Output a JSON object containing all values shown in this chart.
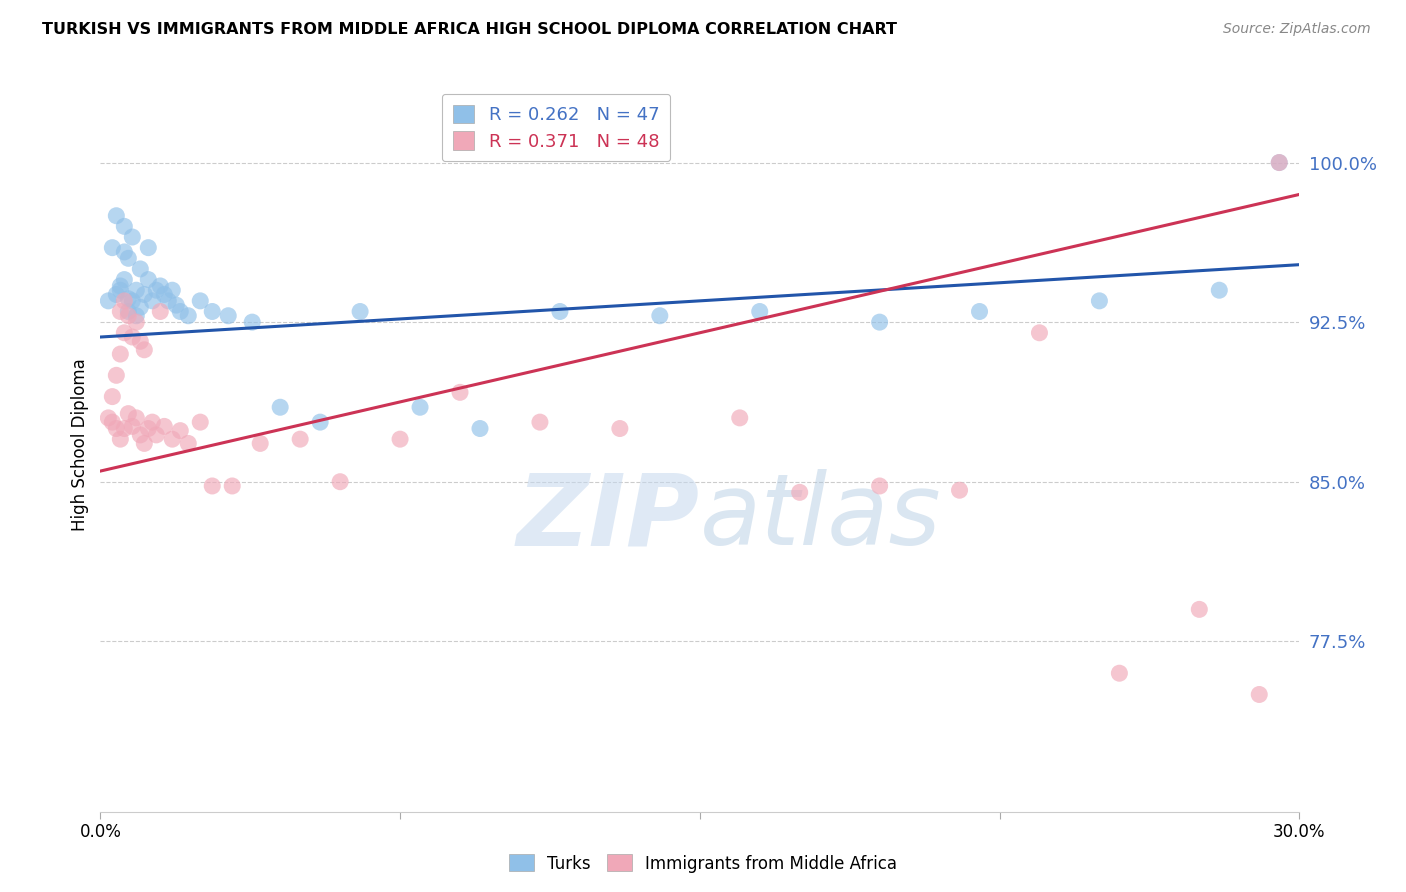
{
  "title": "TURKISH VS IMMIGRANTS FROM MIDDLE AFRICA HIGH SCHOOL DIPLOMA CORRELATION CHART",
  "source": "Source: ZipAtlas.com",
  "ylabel": "High School Diploma",
  "yticks": [
    0.775,
    0.85,
    0.925,
    1.0
  ],
  "ytick_labels": [
    "77.5%",
    "85.0%",
    "92.5%",
    "100.0%"
  ],
  "xlim": [
    0.0,
    0.3
  ],
  "ylim": [
    0.695,
    1.04
  ],
  "legend_blue_r": "0.262",
  "legend_blue_n": "47",
  "legend_pink_r": "0.371",
  "legend_pink_n": "48",
  "legend_label_blue": "Turks",
  "legend_label_pink": "Immigrants from Middle Africa",
  "blue_color": "#90c0e8",
  "pink_color": "#f0a8b8",
  "blue_line_color": "#2255aa",
  "pink_line_color": "#cc3355",
  "blue_line_y0": 0.918,
  "blue_line_y1": 0.952,
  "pink_line_y0": 0.855,
  "pink_line_y1": 0.985,
  "blue_scatter_x": [
    0.002,
    0.003,
    0.004,
    0.004,
    0.005,
    0.005,
    0.006,
    0.006,
    0.006,
    0.007,
    0.007,
    0.007,
    0.008,
    0.008,
    0.009,
    0.009,
    0.01,
    0.01,
    0.011,
    0.012,
    0.012,
    0.013,
    0.014,
    0.015,
    0.016,
    0.017,
    0.018,
    0.019,
    0.02,
    0.022,
    0.025,
    0.028,
    0.032,
    0.038,
    0.045,
    0.055,
    0.065,
    0.08,
    0.095,
    0.115,
    0.14,
    0.165,
    0.195,
    0.22,
    0.25,
    0.28,
    0.295
  ],
  "blue_scatter_y": [
    0.935,
    0.96,
    0.938,
    0.975,
    0.94,
    0.942,
    0.945,
    0.958,
    0.97,
    0.936,
    0.955,
    0.93,
    0.935,
    0.965,
    0.94,
    0.928,
    0.932,
    0.95,
    0.938,
    0.945,
    0.96,
    0.935,
    0.94,
    0.942,
    0.938,
    0.935,
    0.94,
    0.933,
    0.93,
    0.928,
    0.935,
    0.93,
    0.928,
    0.925,
    0.885,
    0.878,
    0.93,
    0.885,
    0.875,
    0.93,
    0.928,
    0.93,
    0.925,
    0.93,
    0.935,
    0.94,
    1.0
  ],
  "pink_scatter_x": [
    0.002,
    0.003,
    0.003,
    0.004,
    0.004,
    0.005,
    0.005,
    0.005,
    0.006,
    0.006,
    0.006,
    0.007,
    0.007,
    0.008,
    0.008,
    0.009,
    0.009,
    0.01,
    0.01,
    0.011,
    0.011,
    0.012,
    0.013,
    0.014,
    0.015,
    0.016,
    0.018,
    0.02,
    0.022,
    0.025,
    0.028,
    0.033,
    0.04,
    0.05,
    0.06,
    0.075,
    0.09,
    0.11,
    0.13,
    0.16,
    0.175,
    0.195,
    0.215,
    0.235,
    0.255,
    0.275,
    0.29,
    0.295
  ],
  "pink_scatter_y": [
    0.88,
    0.89,
    0.878,
    0.875,
    0.9,
    0.87,
    0.91,
    0.93,
    0.875,
    0.92,
    0.935,
    0.882,
    0.928,
    0.876,
    0.918,
    0.88,
    0.925,
    0.872,
    0.916,
    0.868,
    0.912,
    0.875,
    0.878,
    0.872,
    0.93,
    0.876,
    0.87,
    0.874,
    0.868,
    0.878,
    0.848,
    0.848,
    0.868,
    0.87,
    0.85,
    0.87,
    0.892,
    0.878,
    0.875,
    0.88,
    0.845,
    0.848,
    0.846,
    0.92,
    0.76,
    0.79,
    0.75,
    1.0
  ],
  "watermark_zip": "ZIP",
  "watermark_atlas": "atlas",
  "background_color": "#ffffff",
  "grid_color": "#cccccc"
}
